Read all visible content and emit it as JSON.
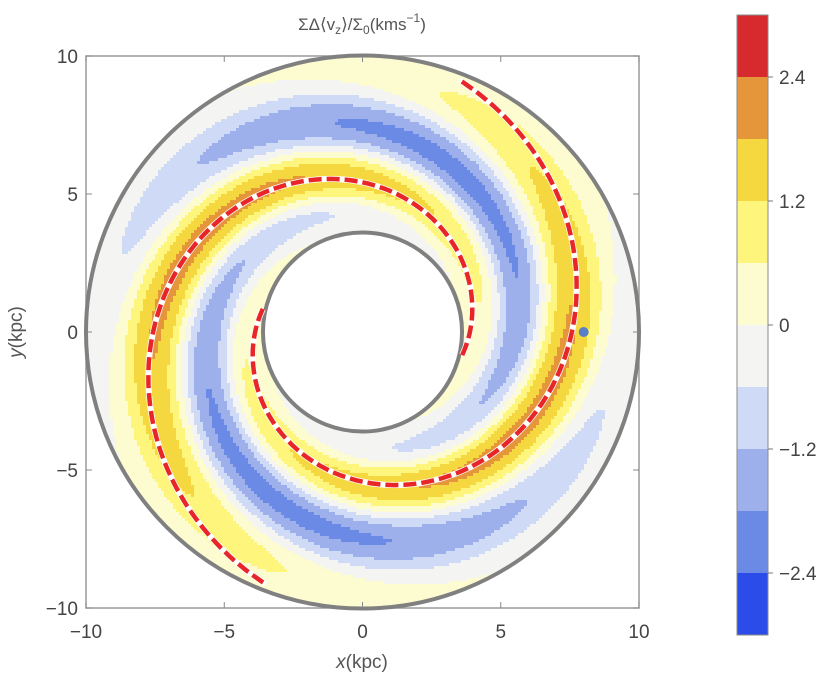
{
  "chart_data": {
    "type": "heatmap",
    "title_parts": {
      "a": "ΣΔ⟨v",
      "sub": "z",
      "b": "⟩/Σ",
      "sub0": "0",
      "c": "(kms",
      "sup": "−1",
      "d": ")"
    },
    "xlabel": {
      "var": "x",
      "unit": "(kpc)"
    },
    "ylabel": {
      "var": "y",
      "unit": "(kpc)"
    },
    "xlim": [
      -10,
      10
    ],
    "ylim": [
      -10,
      10
    ],
    "xticks": [
      -10,
      -5,
      0,
      5,
      10
    ],
    "yticks": [
      -10,
      -5,
      0,
      5,
      10
    ],
    "xtick_labels": [
      "−10",
      "−5",
      "0",
      "5",
      "10"
    ],
    "ytick_labels": [
      "−10",
      "−5",
      "0",
      "5",
      "10"
    ],
    "disk": {
      "r_inner": 3.6,
      "r_outer": 10.0,
      "arms": 2,
      "pitch_deg": 12
    },
    "marker_point": {
      "x": 8.0,
      "y": 0.0
    },
    "colorbar": {
      "min": -3.0,
      "max": 3.0,
      "levels": [
        -3.0,
        -2.4,
        -1.8,
        -1.2,
        -0.6,
        0.0,
        0.6,
        1.2,
        1.8,
        2.4,
        3.0
      ],
      "colors": [
        "#2b4ce8",
        "#6b8ae6",
        "#9eb0ec",
        "#cfdaf6",
        "#f4f4f2",
        "#fdfbd0",
        "#fdf57c",
        "#f5d840",
        "#e5963a",
        "#d62a2e"
      ],
      "tick_values": [
        2.4,
        1.2,
        0,
        -1.2,
        -2.4
      ],
      "tick_labels": [
        "2.4",
        "1.2",
        "0",
        "−1.2",
        "−2.4"
      ]
    }
  }
}
